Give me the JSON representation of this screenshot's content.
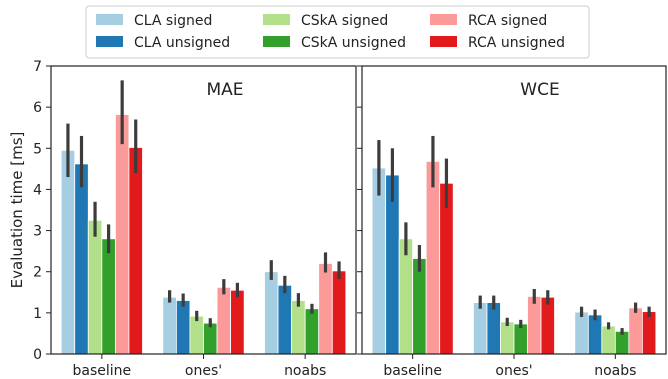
{
  "legend": {
    "entries": [
      {
        "label": "CLA signed",
        "color": "#a6cee3"
      },
      {
        "label": "CLA unsigned",
        "color": "#1f78b4"
      },
      {
        "label": "CSkA signed",
        "color": "#b2df8a"
      },
      {
        "label": "CSkA unsigned",
        "color": "#33a02c"
      },
      {
        "label": "RCA signed",
        "color": "#fb9a99"
      },
      {
        "label": "RCA unsigned",
        "color": "#e31a1c"
      }
    ]
  },
  "chart_data": [
    {
      "type": "bar",
      "title": "MAE",
      "ylabel": "Evaluation time [ms]",
      "ylim": [
        0,
        7
      ],
      "yticks": [
        "0",
        "1",
        "2",
        "3",
        "4",
        "5",
        "6",
        "7"
      ],
      "categories": [
        "baseline",
        "ones'",
        "noabs"
      ],
      "series": [
        {
          "name": "CLA signed",
          "color": "#a6cee3",
          "values": [
            4.95,
            1.38,
            2.0
          ],
          "err_low": [
            4.3,
            1.25,
            1.8
          ],
          "err_high": [
            5.6,
            1.55,
            2.28
          ]
        },
        {
          "name": "CLA unsigned",
          "color": "#1f78b4",
          "values": [
            4.62,
            1.3,
            1.67
          ],
          "err_low": [
            4.05,
            1.15,
            1.48
          ],
          "err_high": [
            5.3,
            1.47,
            1.9
          ]
        },
        {
          "name": "CSkA signed",
          "color": "#b2df8a",
          "values": [
            3.25,
            0.92,
            1.3
          ],
          "err_low": [
            2.85,
            0.8,
            1.15
          ],
          "err_high": [
            3.7,
            1.05,
            1.48
          ]
        },
        {
          "name": "CSkA unsigned",
          "color": "#33a02c",
          "values": [
            2.8,
            0.75,
            1.1
          ],
          "err_low": [
            2.45,
            0.65,
            0.98
          ],
          "err_high": [
            3.15,
            0.87,
            1.22
          ]
        },
        {
          "name": "RCA signed",
          "color": "#fb9a99",
          "values": [
            5.82,
            1.62,
            2.2
          ],
          "err_low": [
            5.1,
            1.45,
            1.98
          ],
          "err_high": [
            6.65,
            1.82,
            2.47
          ]
        },
        {
          "name": "RCA unsigned",
          "color": "#e31a1c",
          "values": [
            5.02,
            1.55,
            2.02
          ],
          "err_low": [
            4.4,
            1.38,
            1.82
          ],
          "err_high": [
            5.7,
            1.73,
            2.25
          ]
        }
      ]
    },
    {
      "type": "bar",
      "title": "WCE",
      "ylim": [
        0,
        7
      ],
      "categories": [
        "baseline",
        "ones'",
        "noabs"
      ],
      "series": [
        {
          "name": "CLA signed",
          "color": "#a6cee3",
          "values": [
            4.52,
            1.25,
            1.02
          ],
          "err_low": [
            3.85,
            1.1,
            0.9
          ],
          "err_high": [
            5.2,
            1.42,
            1.15
          ]
        },
        {
          "name": "CLA unsigned",
          "color": "#1f78b4",
          "values": [
            4.35,
            1.25,
            0.95
          ],
          "err_low": [
            3.7,
            1.08,
            0.82
          ],
          "err_high": [
            5.0,
            1.42,
            1.08
          ]
        },
        {
          "name": "CSkA signed",
          "color": "#b2df8a",
          "values": [
            2.8,
            0.78,
            0.68
          ],
          "err_low": [
            2.4,
            0.68,
            0.6
          ],
          "err_high": [
            3.2,
            0.88,
            0.77
          ]
        },
        {
          "name": "CSkA unsigned",
          "color": "#33a02c",
          "values": [
            2.32,
            0.73,
            0.55
          ],
          "err_low": [
            2.0,
            0.63,
            0.47
          ],
          "err_high": [
            2.65,
            0.83,
            0.63
          ]
        },
        {
          "name": "RCA signed",
          "color": "#fb9a99",
          "values": [
            4.68,
            1.4,
            1.12
          ],
          "err_low": [
            4.05,
            1.22,
            1.0
          ],
          "err_high": [
            5.3,
            1.58,
            1.25
          ]
        },
        {
          "name": "RCA unsigned",
          "color": "#e31a1c",
          "values": [
            4.15,
            1.38,
            1.03
          ],
          "err_low": [
            3.55,
            1.2,
            0.9
          ],
          "err_high": [
            4.75,
            1.55,
            1.15
          ]
        }
      ]
    }
  ]
}
